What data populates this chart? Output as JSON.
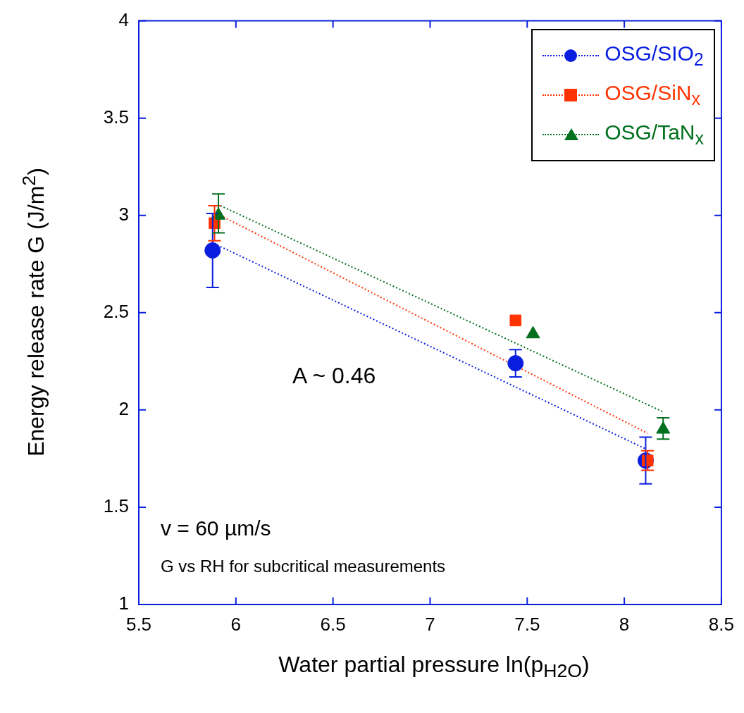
{
  "chart_data": {
    "type": "scatter",
    "xlabel": "Water partial pressure ln(p$_{H2O}$)",
    "ylabel": "Energy release rate G (J/m$^{2}$)",
    "xlim": [
      5.5,
      8.5
    ],
    "xticks": [
      5.5,
      6,
      6.5,
      7,
      7.5,
      8,
      8.5
    ],
    "ylim": [
      1,
      4
    ],
    "yticks": [
      1,
      1.5,
      2,
      2.5,
      3,
      3.5,
      4
    ],
    "legend": "top right",
    "line_style": "dotted",
    "annotations": [
      "A ~ 0.46",
      "v = 60  µm/s",
      "G vs RH for subcritical measurements"
    ],
    "series": [
      {
        "name": "OSG/SIO$_{2}$",
        "color": "#0a1ee0",
        "marker": "circle",
        "x": [
          5.88,
          7.44,
          8.11
        ],
        "values": [
          2.82,
          2.24,
          1.74
        ],
        "errors": [
          [
            2.63,
            3.01
          ],
          [
            2.17,
            2.31
          ],
          [
            1.62,
            1.86
          ]
        ]
      },
      {
        "name": "OSG/SiN$_{x}$",
        "color": "#ff3300",
        "marker": "square",
        "x": [
          5.89,
          7.44,
          8.12
        ],
        "values": [
          2.96,
          2.46,
          1.74
        ],
        "errors": [
          [
            2.87,
            3.05
          ],
          null,
          [
            1.69,
            1.79
          ]
        ]
      },
      {
        "name": "OSG/TaN$_{x}$",
        "color": "#00701e",
        "marker": "triangle",
        "x": [
          5.91,
          7.53,
          8.2
        ],
        "values": [
          3.0,
          2.39,
          1.9
        ],
        "errors": [
          [
            2.91,
            3.11
          ],
          null,
          [
            1.85,
            1.96
          ]
        ]
      },
      {
        "type": "line",
        "color": "#0a1ee0",
        "marker": "none",
        "x": [
          5.92,
          8.11
        ],
        "values": [
          2.84,
          1.8
        ]
      },
      {
        "type": "line",
        "color": "#ff3300",
        "marker": "none",
        "x": [
          5.92,
          8.12
        ],
        "values": [
          3.0,
          1.88
        ]
      },
      {
        "type": "line",
        "color": "#00701e",
        "marker": "none",
        "x": [
          5.92,
          8.2
        ],
        "values": [
          3.05,
          1.99
        ]
      }
    ]
  }
}
